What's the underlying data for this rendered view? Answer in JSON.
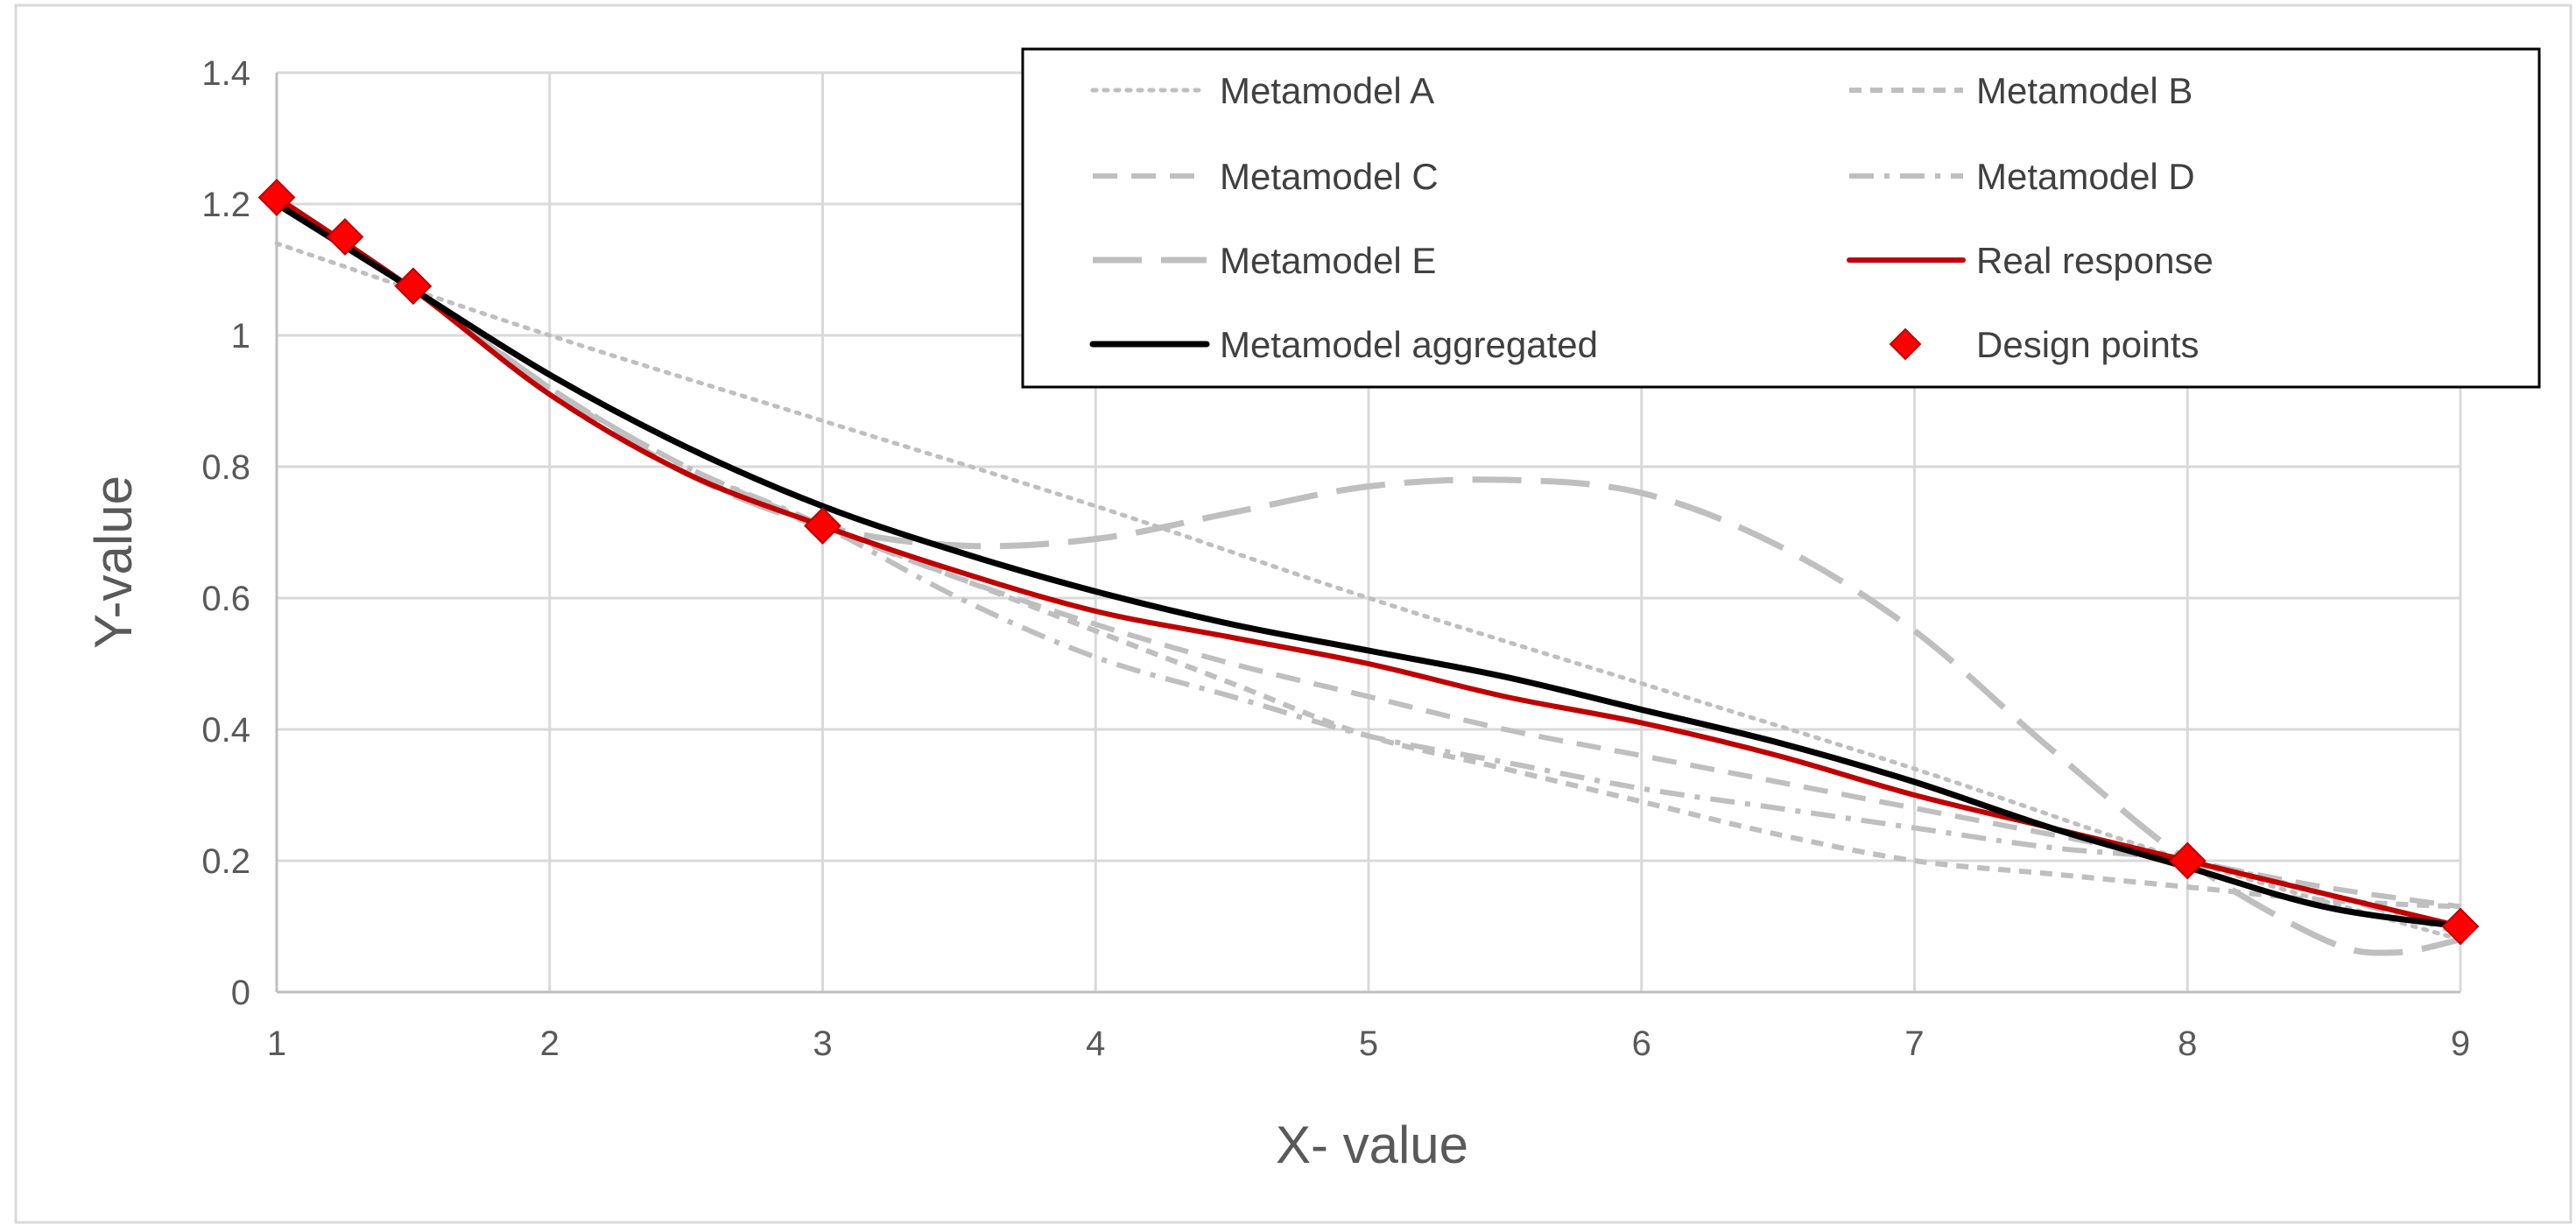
{
  "chart_data": {
    "type": "line",
    "title": "",
    "xlabel": "X- value",
    "ylabel": "Y-value",
    "xlim": [
      1,
      9
    ],
    "ylim": [
      0,
      1.4
    ],
    "x_ticks": [
      "1",
      "2",
      "3",
      "4",
      "5",
      "6",
      "7",
      "8",
      "9"
    ],
    "y_ticks": [
      "0",
      "0.2",
      "0.4",
      "0.6",
      "0.8",
      "1",
      "1.2",
      "1.4"
    ],
    "grid": true,
    "legend_position": "top-right",
    "series": [
      {
        "name": "Metamodel A",
        "color": "#bfbfbf",
        "style": "dotted",
        "x": [
          1,
          2,
          3,
          4,
          5,
          6,
          7,
          8,
          9
        ],
        "y": [
          1.14,
          1.0,
          0.87,
          0.74,
          0.6,
          0.47,
          0.34,
          0.2,
          0.08
        ]
      },
      {
        "name": "Metamodel B",
        "color": "#bfbfbf",
        "style": "dashed",
        "x": [
          1,
          1.5,
          2,
          2.5,
          3,
          3.5,
          4,
          4.5,
          5,
          5.5,
          6,
          6.5,
          7,
          7.5,
          8,
          8.5,
          9
        ],
        "y": [
          1.21,
          1.07,
          0.91,
          0.79,
          0.71,
          0.63,
          0.55,
          0.47,
          0.39,
          0.34,
          0.29,
          0.24,
          0.2,
          0.18,
          0.16,
          0.14,
          0.13
        ]
      },
      {
        "name": "Metamodel C",
        "color": "#bfbfbf",
        "style": "dashed-medium",
        "x": [
          1,
          1.5,
          2,
          2.5,
          3,
          3.5,
          4,
          4.5,
          5,
          5.5,
          6,
          6.5,
          7,
          7.5,
          8,
          8.5,
          9
        ],
        "y": [
          1.21,
          1.07,
          0.92,
          0.8,
          0.71,
          0.63,
          0.56,
          0.5,
          0.45,
          0.4,
          0.36,
          0.32,
          0.28,
          0.24,
          0.2,
          0.16,
          0.13
        ]
      },
      {
        "name": "Metamodel D",
        "color": "#bfbfbf",
        "style": "dash-dot",
        "x": [
          1,
          1.5,
          2,
          2.5,
          3,
          3.5,
          4,
          4.5,
          5,
          5.5,
          6,
          6.5,
          7,
          7.5,
          8,
          8.5,
          9
        ],
        "y": [
          1.21,
          1.07,
          0.92,
          0.8,
          0.71,
          0.6,
          0.51,
          0.45,
          0.39,
          0.35,
          0.31,
          0.28,
          0.25,
          0.22,
          0.2,
          0.15,
          0.09
        ]
      },
      {
        "name": "Metamodel E",
        "color": "#bfbfbf",
        "style": "long-dash",
        "x": [
          1,
          1.5,
          2,
          2.5,
          3,
          3.5,
          4,
          4.5,
          5,
          5.5,
          6,
          6.5,
          7,
          7.5,
          8,
          8.5,
          8.75,
          9
        ],
        "y": [
          1.21,
          1.07,
          0.92,
          0.79,
          0.71,
          0.68,
          0.69,
          0.73,
          0.77,
          0.78,
          0.76,
          0.68,
          0.55,
          0.37,
          0.2,
          0.08,
          0.06,
          0.08
        ]
      },
      {
        "name": "Real response",
        "color": "#c00000",
        "style": "solid",
        "x": [
          1,
          1.5,
          2,
          2.5,
          3,
          3.5,
          4,
          4.5,
          5,
          5.5,
          6,
          6.5,
          7,
          7.5,
          8,
          8.5,
          9
        ],
        "y": [
          1.21,
          1.07,
          0.91,
          0.79,
          0.71,
          0.64,
          0.58,
          0.54,
          0.5,
          0.45,
          0.41,
          0.36,
          0.3,
          0.25,
          0.2,
          0.15,
          0.1
        ]
      },
      {
        "name": "Metamodel aggregated",
        "color": "#000000",
        "style": "solid-thick",
        "x": [
          1,
          1.5,
          2,
          2.5,
          3,
          3.5,
          4,
          4.5,
          5,
          5.5,
          6,
          6.5,
          7,
          7.5,
          8,
          8.5,
          9
        ],
        "y": [
          1.2,
          1.07,
          0.94,
          0.83,
          0.74,
          0.67,
          0.61,
          0.56,
          0.52,
          0.48,
          0.43,
          0.38,
          0.32,
          0.25,
          0.19,
          0.13,
          0.1
        ]
      },
      {
        "name": "Design points",
        "color": "#ff0000",
        "style": "markers",
        "x": [
          1,
          1.25,
          1.5,
          3,
          8,
          9
        ],
        "y": [
          1.21,
          1.15,
          1.075,
          0.71,
          0.2,
          0.1
        ]
      }
    ]
  }
}
